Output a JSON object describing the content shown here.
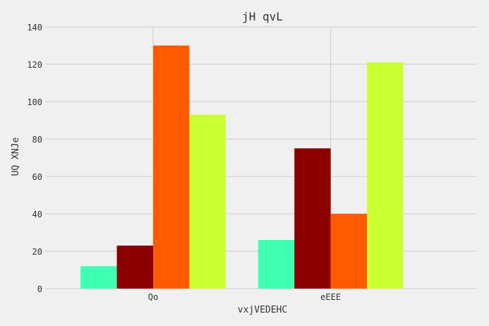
{
  "chart_data": {
    "type": "bar",
    "title": "jH qvL",
    "xlabel": "vxjVEDEHC",
    "ylabel": "UQ XNJe",
    "categories": [
      "Qo",
      "eEEE"
    ],
    "series": [
      {
        "values": [
          12,
          26
        ],
        "color": "#3fffb2"
      },
      {
        "values": [
          23,
          75
        ],
        "color": "#8b0000"
      },
      {
        "values": [
          130,
          40
        ],
        "color": "#ff5a00"
      },
      {
        "values": [
          93,
          121
        ],
        "color": "#ccff33"
      }
    ],
    "ylim": [
      0,
      140
    ],
    "yticks": [
      0,
      20,
      40,
      60,
      80,
      100,
      120,
      140
    ],
    "grid": true,
    "legend": "none"
  }
}
